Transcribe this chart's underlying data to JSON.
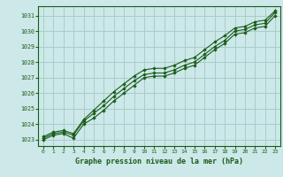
{
  "title": "Graphe pression niveau de la mer (hPa)",
  "bg_color": "#cce8e8",
  "grid_color": "#aacccc",
  "line_color": "#1a5c1a",
  "marker_color": "#1a5c1a",
  "xlim": [
    -0.5,
    23.5
  ],
  "ylim": [
    1022.6,
    1031.6
  ],
  "yticks": [
    1023,
    1024,
    1025,
    1026,
    1027,
    1028,
    1029,
    1030,
    1031
  ],
  "xticks": [
    0,
    1,
    2,
    3,
    4,
    5,
    6,
    7,
    8,
    9,
    10,
    11,
    12,
    13,
    14,
    15,
    16,
    17,
    18,
    19,
    20,
    21,
    22,
    23
  ],
  "series": [
    [
      1023.1,
      1023.4,
      1023.5,
      1023.3,
      1024.2,
      1024.7,
      1025.2,
      1025.8,
      1026.3,
      1026.8,
      1027.2,
      1027.3,
      1027.3,
      1027.5,
      1027.8,
      1028.0,
      1028.5,
      1029.0,
      1029.4,
      1030.0,
      1030.1,
      1030.4,
      1030.5,
      1031.2
    ],
    [
      1023.0,
      1023.3,
      1023.4,
      1023.1,
      1024.0,
      1024.4,
      1024.9,
      1025.5,
      1026.0,
      1026.5,
      1027.0,
      1027.1,
      1027.1,
      1027.3,
      1027.6,
      1027.8,
      1028.3,
      1028.8,
      1029.2,
      1029.8,
      1029.9,
      1030.2,
      1030.3,
      1031.0
    ],
    [
      1023.2,
      1023.5,
      1023.6,
      1023.4,
      1024.3,
      1024.9,
      1025.5,
      1026.1,
      1026.6,
      1027.1,
      1027.5,
      1027.6,
      1027.6,
      1027.8,
      1028.1,
      1028.3,
      1028.8,
      1029.3,
      1029.7,
      1030.2,
      1030.3,
      1030.6,
      1030.7,
      1031.3
    ]
  ]
}
